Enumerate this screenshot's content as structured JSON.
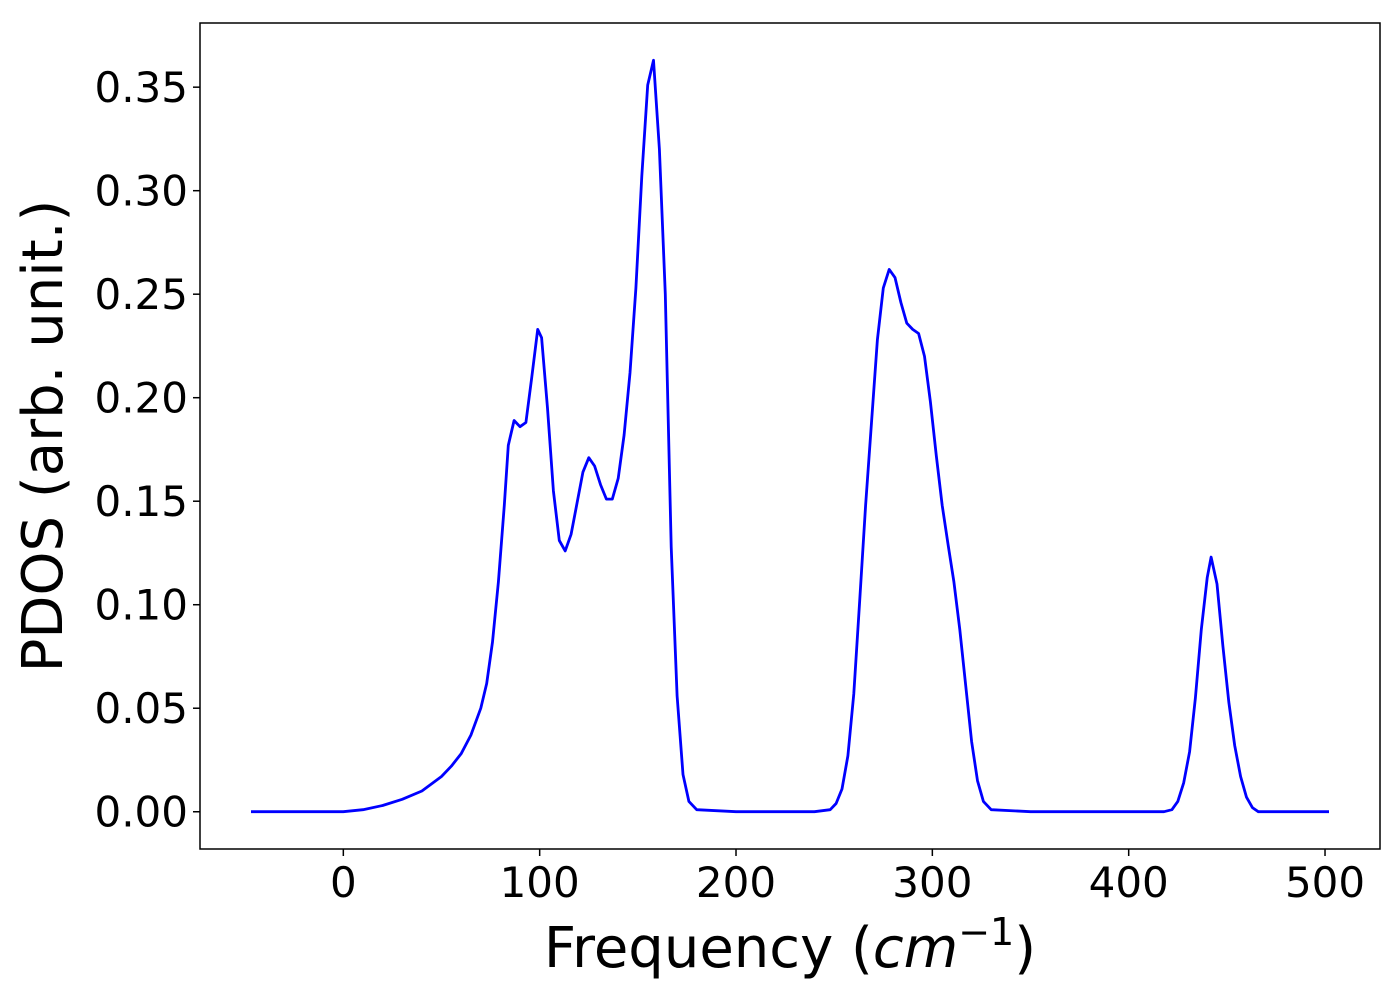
{
  "chart_data": {
    "type": "line",
    "xlabel": "Frequency (cm⁻¹)",
    "xlabel_parts": {
      "prefix": "Frequency (",
      "var": "cm",
      "exp": "−1",
      "suffix": ")"
    },
    "ylabel": "PDOS (arb. unit.)",
    "xlim": [
      -73,
      528
    ],
    "ylim": [
      -0.018,
      0.381
    ],
    "xticks": [
      0,
      100,
      200,
      300,
      400,
      500
    ],
    "yticks": [
      0.0,
      0.05,
      0.1,
      0.15,
      0.2,
      0.25,
      0.3,
      0.35
    ],
    "xtick_labels": [
      "0",
      "100",
      "200",
      "300",
      "400",
      "500"
    ],
    "ytick_labels": [
      "0.00",
      "0.05",
      "0.10",
      "0.15",
      "0.20",
      "0.25",
      "0.30",
      "0.35"
    ],
    "grid": false,
    "line_color": "#0000ff",
    "series": [
      {
        "x": [
          -47,
          0,
          10,
          20,
          30,
          40,
          50,
          55,
          60,
          65,
          70,
          73,
          76,
          79,
          82,
          84,
          87,
          90,
          93,
          96,
          99,
          101,
          104,
          107,
          110,
          113,
          116,
          119,
          122,
          125,
          128,
          131,
          134,
          137,
          140,
          143,
          146,
          149,
          152,
          155,
          158,
          161,
          164,
          167,
          170,
          173,
          176,
          180,
          200,
          240,
          248,
          251,
          254,
          257,
          260,
          263,
          266,
          269,
          272,
          275,
          278,
          281,
          284,
          287,
          290,
          293,
          296,
          299,
          302,
          305,
          308,
          311,
          314,
          317,
          320,
          323,
          326,
          330,
          350,
          400,
          418,
          422,
          425,
          428,
          431,
          434,
          437,
          440,
          442,
          445,
          448,
          451,
          454,
          457,
          460,
          463,
          466,
          470,
          480,
          502
        ],
        "y": [
          0.0,
          0.0,
          0.001,
          0.003,
          0.006,
          0.01,
          0.017,
          0.022,
          0.028,
          0.037,
          0.05,
          0.062,
          0.082,
          0.111,
          0.148,
          0.177,
          0.189,
          0.186,
          0.188,
          0.21,
          0.233,
          0.229,
          0.195,
          0.155,
          0.131,
          0.126,
          0.134,
          0.149,
          0.164,
          0.171,
          0.167,
          0.158,
          0.151,
          0.151,
          0.161,
          0.182,
          0.212,
          0.253,
          0.307,
          0.351,
          0.363,
          0.32,
          0.25,
          0.128,
          0.056,
          0.018,
          0.005,
          0.001,
          0.0,
          0.0,
          0.001,
          0.004,
          0.011,
          0.027,
          0.057,
          0.102,
          0.148,
          0.188,
          0.228,
          0.253,
          0.262,
          0.258,
          0.246,
          0.236,
          0.233,
          0.231,
          0.22,
          0.198,
          0.172,
          0.148,
          0.129,
          0.111,
          0.088,
          0.061,
          0.034,
          0.015,
          0.005,
          0.001,
          0.0,
          0.0,
          0.0,
          0.001,
          0.005,
          0.014,
          0.029,
          0.055,
          0.088,
          0.113,
          0.123,
          0.11,
          0.08,
          0.053,
          0.032,
          0.017,
          0.007,
          0.002,
          0.0,
          0.0,
          0.0,
          0.0
        ]
      }
    ]
  }
}
